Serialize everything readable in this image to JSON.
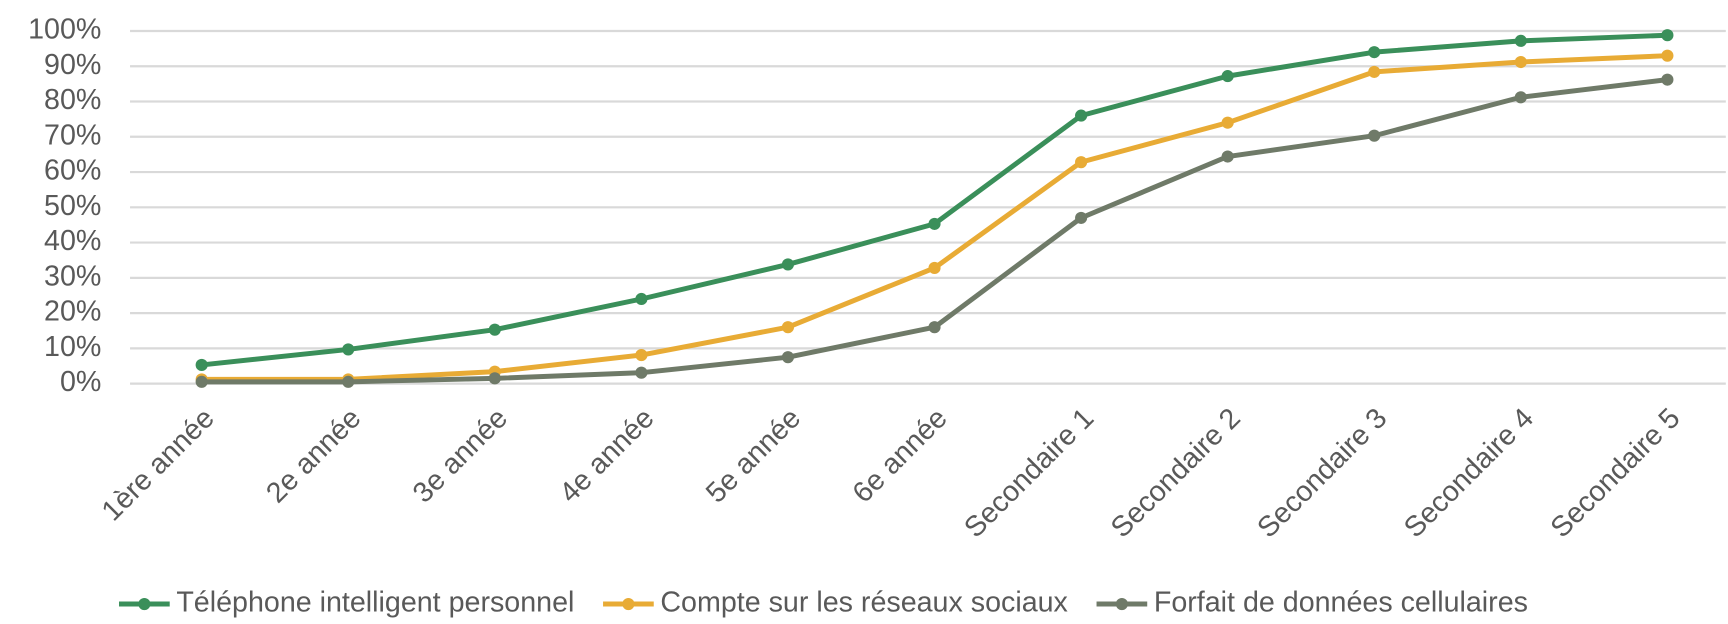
{
  "chart_data": {
    "type": "line",
    "categories": [
      "1ère année",
      "2e année",
      "3e année",
      "4e année",
      "5e année",
      "6e année",
      "Secondaire 1",
      "Secondaire 2",
      "Secondaire 3",
      "Secondaire 4",
      "Secondaire 5"
    ],
    "series": [
      {
        "name": "Téléphone intelligent personnel",
        "color": "#3a8f5a",
        "values": [
          5.3,
          9.7,
          15.3,
          24,
          33.8,
          45.3,
          76,
          87.2,
          94,
          97.2,
          98.8
        ]
      },
      {
        "name": "Compte sur les réseaux sociaux",
        "color": "#e8ab35",
        "values": [
          1.2,
          1.2,
          3.4,
          8.1,
          16,
          32.8,
          62.8,
          74,
          88.4,
          91.2,
          93
        ]
      },
      {
        "name": "Forfait de données cellulaires",
        "color": "#6f7a68",
        "values": [
          0.5,
          0.5,
          1.5,
          3.1,
          7.5,
          16,
          47,
          64.4,
          70.3,
          81.2,
          86.2
        ]
      }
    ],
    "ylim": [
      0,
      100
    ],
    "yticks": [
      {
        "value": 0,
        "label": "0%"
      },
      {
        "value": 10,
        "label": "10%"
      },
      {
        "value": 20,
        "label": "20%"
      },
      {
        "value": 30,
        "label": "30%"
      },
      {
        "value": 40,
        "label": "40%"
      },
      {
        "value": 50,
        "label": "50%"
      },
      {
        "value": 60,
        "label": "60%"
      },
      {
        "value": 70,
        "label": "70%"
      },
      {
        "value": 80,
        "label": "80%"
      },
      {
        "value": 90,
        "label": "90%"
      },
      {
        "value": 100,
        "label": "100%"
      }
    ],
    "grid": true,
    "legend": "bottom"
  }
}
